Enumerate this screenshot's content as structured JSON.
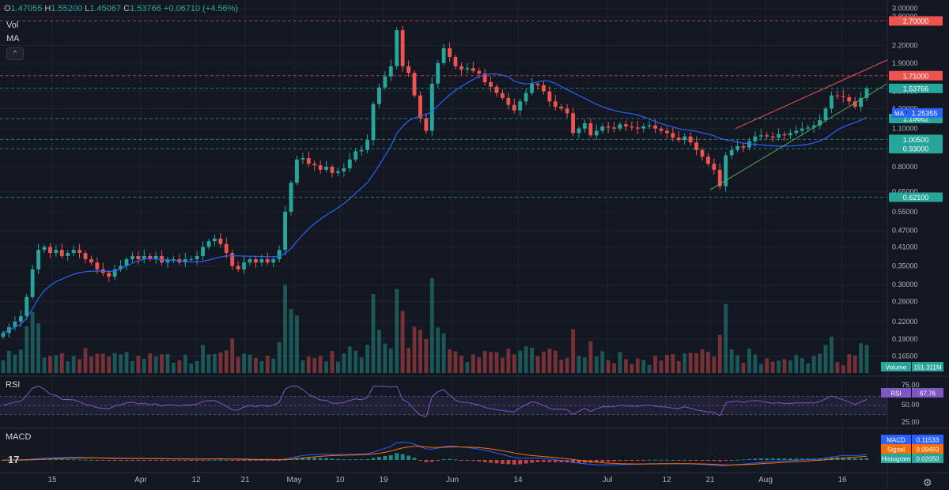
{
  "header": {
    "open_label": "O",
    "open": "1.47055",
    "high_label": "H",
    "high": "1.55200",
    "low_label": "L",
    "low": "1.45067",
    "close_label": "C",
    "close": "1.53766",
    "change": "+0.06710 (+4.56%)"
  },
  "legend": {
    "vol": "Vol",
    "ma": "MA"
  },
  "panes": {
    "rsi_label": "RSI",
    "macd_label": "MACD"
  },
  "logo": "17",
  "colors": {
    "bg": "#131722",
    "up": "#26a69a",
    "down": "#ef5350",
    "ma": "#2962ff",
    "rsi": "#7e57c2",
    "signal": "#ff6d00",
    "grid": "#1f2330"
  },
  "chart_data": {
    "type": "candlestick",
    "price_axis_ticks": [
      "3.00000",
      "2.80000",
      "2.20000",
      "1.90000",
      "1.50000",
      "1.30000",
      "1.10000",
      "0.80000",
      "0.65000",
      "0.55000",
      "0.47000",
      "0.41000",
      "0.35000",
      "0.30000",
      "0.26000",
      "0.22000",
      "0.19000",
      "0.16500"
    ],
    "date_axis_ticks": [
      "15",
      "Apr",
      "12",
      "21",
      "May",
      "10",
      "19",
      "Jun",
      "14",
      "Jul",
      "12",
      "21",
      "Aug",
      "16"
    ],
    "levels": [
      {
        "label": "2.70000",
        "value": 2.7,
        "color": "#ef5350"
      },
      {
        "label": "1.71000",
        "value": 1.71,
        "color": "#ef5350"
      },
      {
        "label": "1.53766",
        "value": 1.53766,
        "color": "#26a69a"
      },
      {
        "label": "1.19662",
        "value": 1.19662,
        "color": "#26a69a"
      },
      {
        "label": "1.00500",
        "value": 1.005,
        "color": "#26a69a"
      },
      {
        "label": "0.93000",
        "value": 0.93,
        "color": "#26a69a"
      },
      {
        "label": "0.62100",
        "value": 0.621,
        "color": "#26a69a"
      }
    ],
    "ma_label": "MA",
    "ma_value": "1.25355",
    "volume_label": "Volume",
    "volume_value": "151.311M",
    "rsi": {
      "label": "RSI",
      "value": "67.76",
      "ticks": [
        "75.00",
        "50.00",
        "25.00"
      ],
      "upper": 70,
      "lower": 30
    },
    "macd": {
      "macd_label": "MACD",
      "macd": "0.11533",
      "signal_label": "Signal",
      "signal": "0.09483",
      "histogram_label": "Histogram",
      "histogram": "0.02050"
    },
    "closes": [
      0.2,
      0.21,
      0.22,
      0.23,
      0.27,
      0.34,
      0.4,
      0.41,
      0.39,
      0.4,
      0.38,
      0.39,
      0.4,
      0.39,
      0.37,
      0.36,
      0.34,
      0.33,
      0.32,
      0.34,
      0.35,
      0.37,
      0.38,
      0.37,
      0.38,
      0.37,
      0.38,
      0.36,
      0.37,
      0.37,
      0.36,
      0.37,
      0.37,
      0.38,
      0.41,
      0.43,
      0.44,
      0.42,
      0.39,
      0.35,
      0.34,
      0.36,
      0.37,
      0.36,
      0.37,
      0.36,
      0.37,
      0.4,
      0.55,
      0.7,
      0.85,
      0.86,
      0.82,
      0.81,
      0.78,
      0.8,
      0.76,
      0.77,
      0.79,
      0.85,
      0.91,
      0.92,
      1.0,
      1.35,
      1.55,
      1.7,
      1.85,
      2.5,
      1.85,
      1.75,
      1.45,
      1.2,
      1.08,
      1.6,
      1.9,
      2.15,
      2.0,
      1.85,
      1.8,
      1.82,
      1.78,
      1.74,
      1.62,
      1.56,
      1.48,
      1.42,
      1.34,
      1.28,
      1.38,
      1.48,
      1.6,
      1.58,
      1.5,
      1.38,
      1.32,
      1.3,
      1.25,
      1.06,
      1.1,
      1.15,
      1.04,
      1.08,
      1.12,
      1.11,
      1.1,
      1.14,
      1.12,
      1.11,
      1.1,
      1.12,
      1.13,
      1.1,
      1.08,
      1.06,
      1.02,
      1.0,
      1.03,
      0.98,
      0.92,
      0.87,
      0.82,
      0.78,
      0.68,
      0.88,
      0.92,
      0.95,
      0.94,
      0.99,
      1.03,
      1.04,
      1.03,
      1.02,
      1.05,
      1.04,
      1.06,
      1.08,
      1.1,
      1.11,
      1.13,
      1.18,
      1.3,
      1.45,
      1.44,
      1.43,
      1.38,
      1.32,
      1.42,
      1.53766
    ],
    "volume_ticks_hidden": true
  }
}
